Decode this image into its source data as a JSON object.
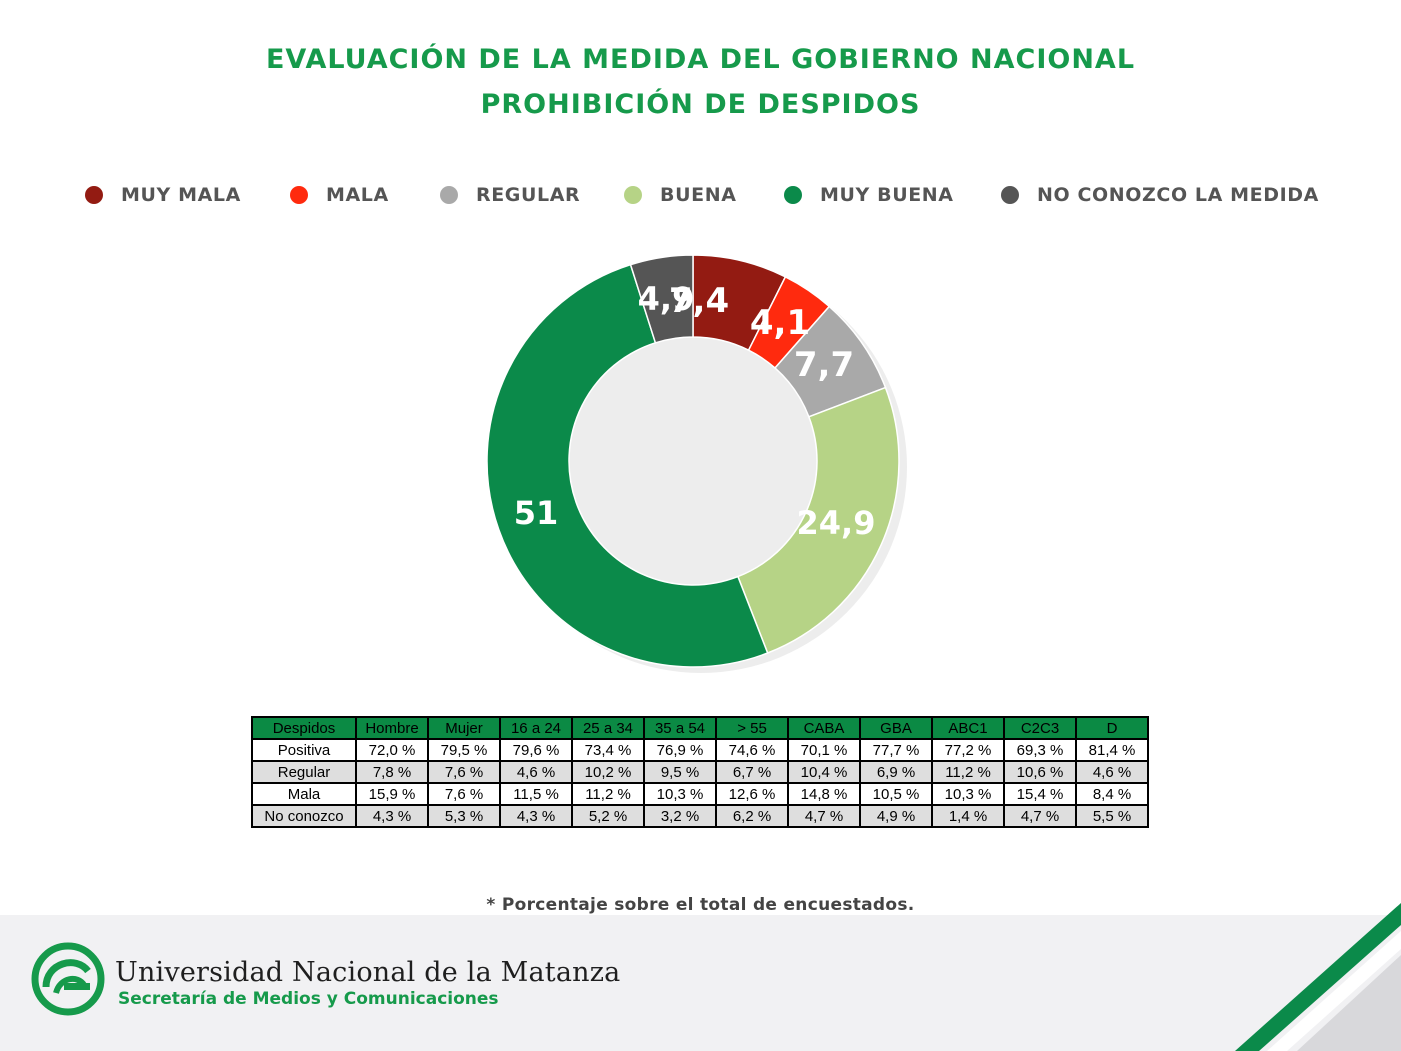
{
  "title_line1": "EVALUACIÓN DE LA MEDIDA DEL GOBIERNO NACIONAL",
  "title_line2": "PROHIBICIÓN DE DESPIDOS",
  "chart_data": {
    "type": "pie",
    "donut": true,
    "legend_position": "top",
    "slices": [
      {
        "label": "MUY MALA",
        "value": 7.4,
        "display": "7,4",
        "color": "#931b12"
      },
      {
        "label": "MALA",
        "value": 4.1,
        "display": "4,1",
        "color": "#ff2a0e"
      },
      {
        "label": "REGULAR",
        "value": 7.7,
        "display": "7,7",
        "color": "#a9a9a9"
      },
      {
        "label": "BUENA",
        "value": 24.9,
        "display": "24,9",
        "color": "#b6d386"
      },
      {
        "label": "MUY BUENA",
        "value": 51,
        "display": "51",
        "color": "#0b8a4a"
      },
      {
        "label": "NO CONOZCO LA MEDIDA",
        "value": 4.9,
        "display": "4,9",
        "color": "#555555"
      }
    ]
  },
  "table": {
    "headers": [
      "Despidos",
      "Hombre",
      "Mujer",
      "16 a 24",
      "25 a 34",
      "35 a 54",
      "> 55",
      "CABA",
      "GBA",
      "ABC1",
      "C2C3",
      "D"
    ],
    "rows": [
      {
        "label": "Positiva",
        "values": [
          "72,0 %",
          "79,5 %",
          "79,6 %",
          "73,4 %",
          "76,9 %",
          "74,6 %",
          "70,1 %",
          "77,7 %",
          "77,2 %",
          "69,3 %",
          "81,4 %"
        ]
      },
      {
        "label": "Regular",
        "values": [
          "7,8 %",
          "7,6 %",
          "4,6 %",
          "10,2 %",
          "9,5 %",
          "6,7 %",
          "10,4 %",
          "6,9 %",
          "11,2 %",
          "10,6 %",
          "4,6 %"
        ]
      },
      {
        "label": "Mala",
        "values": [
          "15,9 %",
          "7,6 %",
          "11,5 %",
          "11,2 %",
          "10,3 %",
          "12,6 %",
          "14,8 %",
          "10,5 %",
          "10,3 %",
          "15,4 %",
          "8,4 %"
        ]
      },
      {
        "label": "No conozco",
        "values": [
          "4,3 %",
          "5,3 %",
          "4,3 %",
          "5,2 %",
          "3,2 %",
          "6,2 %",
          "4,7 %",
          "4,9 %",
          "1,4 %",
          "4,7 %",
          "5,5 %"
        ]
      }
    ]
  },
  "note": "* Porcentaje sobre el total de encuestados.",
  "footer": {
    "university": "Universidad Nacional de la Matanza",
    "department": "Secretaría de Medios y Comunicaciones",
    "logo_icon": "unlam-logo-icon",
    "brand_color": "#169a4b"
  }
}
